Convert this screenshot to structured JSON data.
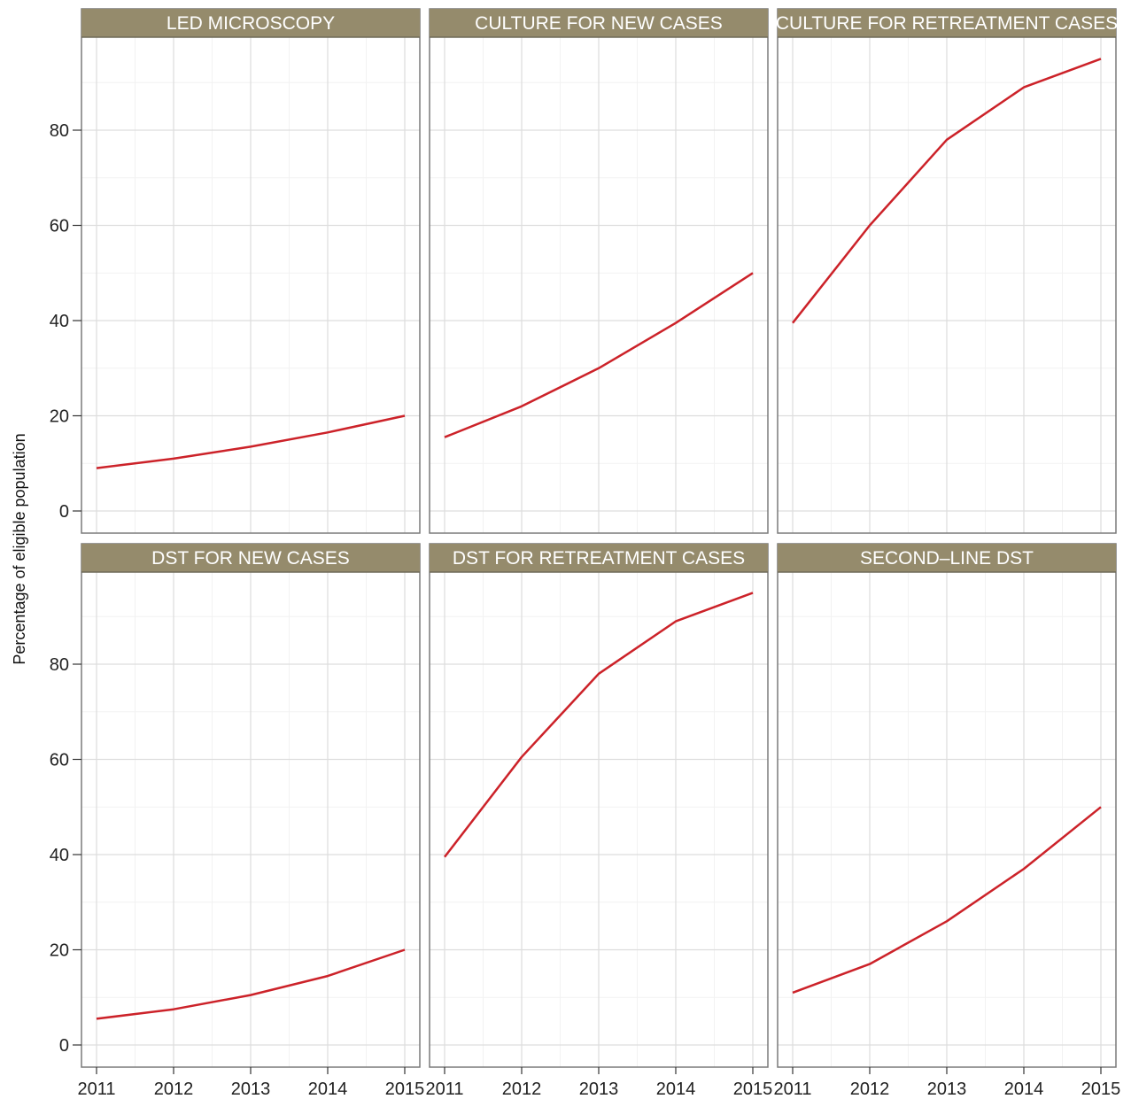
{
  "chart_data": {
    "type": "line",
    "layout": "facet-grid-2x3",
    "ylabel": "Percentage of eligible population",
    "xlabel": "",
    "x": [
      2011,
      2012,
      2013,
      2014,
      2015
    ],
    "ylim": [
      0,
      100
    ],
    "yticks": [
      0,
      20,
      40,
      60,
      80
    ],
    "grid": true,
    "line_color": "#cc2229",
    "strip_color": "#958b6c",
    "panels": [
      {
        "title": "LED MICROSCOPY",
        "values": [
          9,
          11,
          13.5,
          16.5,
          20
        ]
      },
      {
        "title": "CULTURE FOR NEW CASES",
        "values": [
          15.5,
          22,
          30,
          39.5,
          50
        ]
      },
      {
        "title": "CULTURE FOR RETREATMENT CASES",
        "values": [
          39.5,
          60,
          78,
          89,
          95
        ]
      },
      {
        "title": "DST FOR NEW CASES",
        "values": [
          5.5,
          7.5,
          10.5,
          14.5,
          20
        ]
      },
      {
        "title": "DST FOR RETREATMENT CASES",
        "values": [
          39.5,
          60.5,
          78,
          89,
          95
        ]
      },
      {
        "title": "SECOND–LINE DST",
        "values": [
          11,
          17,
          26,
          37,
          50
        ]
      }
    ]
  }
}
